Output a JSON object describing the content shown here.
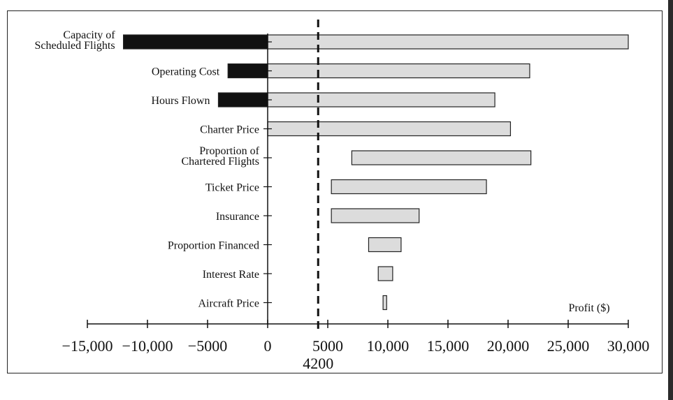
{
  "chart_data": {
    "type": "bar",
    "subtype": "tornado",
    "xlabel": "Profit ($)",
    "xlim": [
      -15000,
      30000
    ],
    "x_ticks": [
      -15000,
      -10000,
      -5000,
      0,
      5000,
      10000,
      15000,
      20000,
      25000,
      30000
    ],
    "x_tick_labels": [
      "−15,000",
      "−10,000",
      "−5000",
      "0",
      "5000",
      "10,000",
      "15,000",
      "20,000",
      "25,000",
      "30,000"
    ],
    "reference_line": {
      "value": 4200,
      "label": "4200",
      "style": "dashed"
    },
    "categories": [
      [
        "Capacity of",
        "Scheduled Flights"
      ],
      [
        "Operating Cost"
      ],
      [
        "Hours Flown"
      ],
      [
        "Charter Price"
      ],
      [
        "Proportion of",
        "Chartered Flights"
      ],
      [
        "Ticket Price"
      ],
      [
        "Insurance"
      ],
      [
        "Proportion Financed"
      ],
      [
        "Interest Rate"
      ],
      [
        "Aircraft Price"
      ]
    ],
    "series": [
      {
        "name": "",
        "color": "#111111",
        "values": [
          [
            -12000,
            0
          ],
          [
            -3300,
            0
          ],
          [
            -4100,
            0
          ],
          null,
          null,
          null,
          null,
          null,
          null,
          null
        ]
      },
      {
        "name": "",
        "color": "#dcdcdc",
        "values": [
          [
            0,
            30000
          ],
          [
            0,
            21800
          ],
          [
            0,
            18900
          ],
          [
            0,
            20200
          ],
          [
            7000,
            21900
          ],
          [
            5300,
            18200
          ],
          [
            5300,
            12600
          ],
          [
            8400,
            11100
          ],
          [
            9200,
            10400
          ],
          [
            9600,
            9900
          ]
        ]
      }
    ],
    "grid": false,
    "legend": "none"
  }
}
